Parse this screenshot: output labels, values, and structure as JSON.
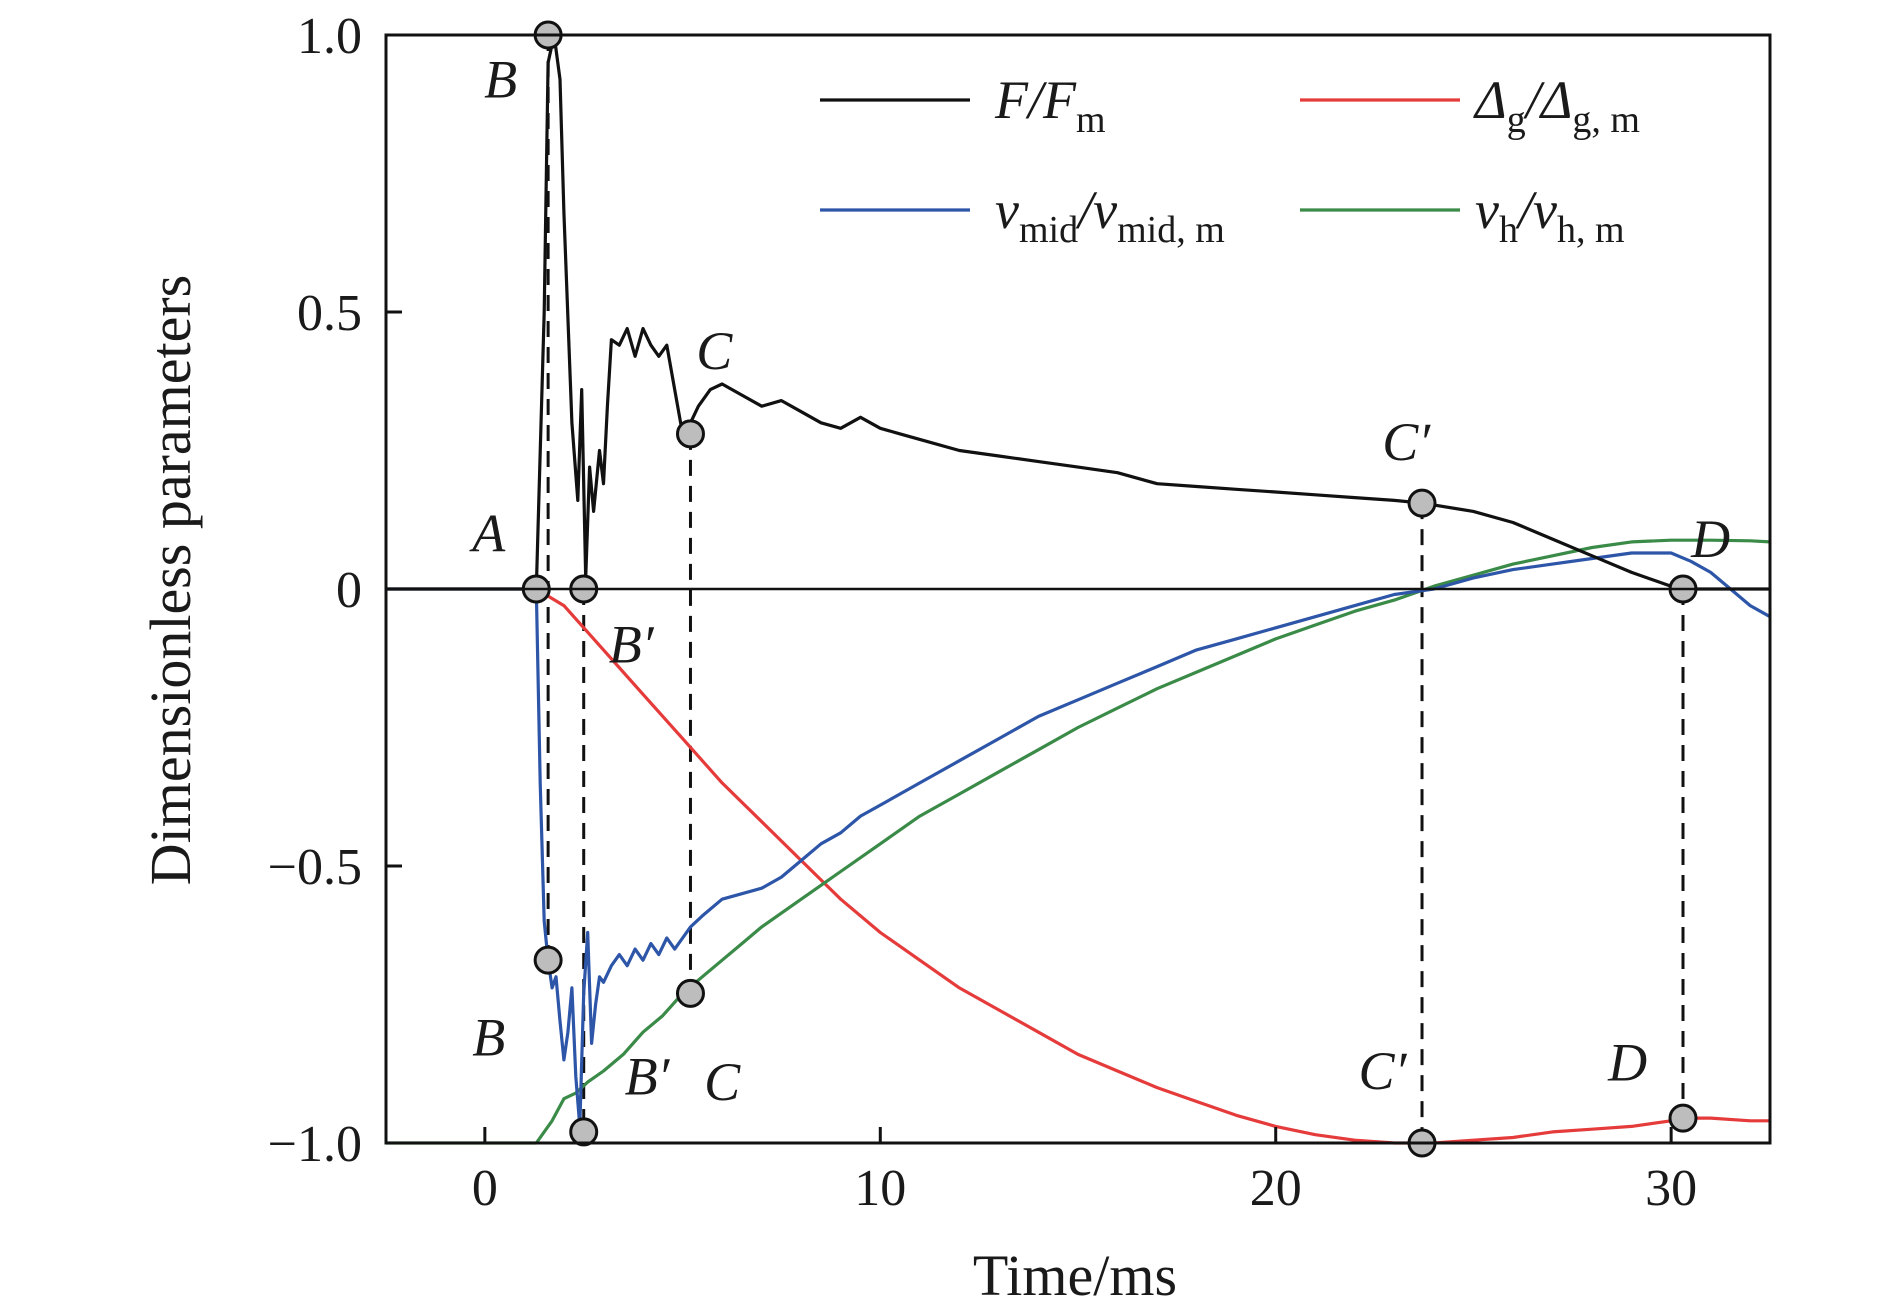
{
  "chart_data": {
    "type": "line",
    "xlabel": "Time/ms",
    "ylabel": "Dimensionless parameters",
    "xlim": [
      -2.5,
      32.5
    ],
    "ylim": [
      -1.0,
      1.0
    ],
    "xticks": [
      0,
      10,
      20,
      30
    ],
    "yticks": [
      1.0,
      0.5,
      0,
      -0.5,
      -1.0
    ],
    "xtick_labels": [
      "0",
      "10",
      "20",
      "30"
    ],
    "ytick_labels": [
      "1.0",
      "0.5",
      "0",
      "−0.5",
      "−1.0"
    ],
    "grid": false,
    "zero_line": true,
    "legend_position": "top-right",
    "series": [
      {
        "name": "F/Fm",
        "legend": {
          "base": "F/F",
          "sub": "m",
          "base2": "",
          "sub2": ""
        },
        "color": "#111111",
        "x": [
          -2.5,
          1.3,
          1.5,
          1.6,
          1.75,
          1.9,
          2.0,
          2.2,
          2.35,
          2.45,
          2.55,
          2.65,
          2.75,
          2.9,
          3.0,
          3.1,
          3.2,
          3.4,
          3.6,
          3.8,
          4.0,
          4.2,
          4.4,
          4.6,
          4.8,
          5.0,
          5.2,
          5.4,
          5.7,
          6.0,
          6.5,
          7.0,
          7.5,
          8.0,
          8.5,
          9.0,
          9.5,
          10.0,
          10.5,
          11.0,
          12.0,
          13.0,
          14.0,
          15.0,
          16.0,
          17.0,
          18.0,
          19.0,
          20.0,
          21.0,
          22.0,
          23.0,
          23.7,
          25.0,
          26.0,
          27.0,
          28.0,
          29.0,
          30.0,
          30.3,
          31.0,
          32.5
        ],
        "y": [
          0.0,
          0.0,
          0.5,
          0.95,
          1.0,
          0.92,
          0.68,
          0.3,
          0.16,
          0.36,
          0.02,
          0.22,
          0.14,
          0.25,
          0.19,
          0.33,
          0.45,
          0.44,
          0.47,
          0.42,
          0.47,
          0.44,
          0.42,
          0.44,
          0.36,
          0.28,
          0.3,
          0.33,
          0.36,
          0.37,
          0.35,
          0.33,
          0.34,
          0.32,
          0.3,
          0.29,
          0.31,
          0.29,
          0.28,
          0.27,
          0.25,
          0.24,
          0.23,
          0.22,
          0.21,
          0.19,
          0.185,
          0.18,
          0.175,
          0.17,
          0.165,
          0.16,
          0.155,
          0.14,
          0.12,
          0.09,
          0.06,
          0.03,
          0.005,
          0.0,
          0.0,
          0.0
        ]
      },
      {
        "name": "Δg/Δg, m",
        "legend": {
          "base": "Δ",
          "sub": "g",
          "base2": "/Δ",
          "sub2": "g, m"
        },
        "color": "#e53b3b",
        "x": [
          1.3,
          2.0,
          3.0,
          4.0,
          5.0,
          6.0,
          7.0,
          8.0,
          9.0,
          10.0,
          11.0,
          12.0,
          13.0,
          14.0,
          15.0,
          16.0,
          17.0,
          18.0,
          19.0,
          20.0,
          21.0,
          22.0,
          23.0,
          24.0,
          25.0,
          26.0,
          27.0,
          28.0,
          29.0,
          30.0,
          30.3,
          31.0,
          32.0,
          32.5
        ],
        "y": [
          0.0,
          -0.03,
          -0.11,
          -0.19,
          -0.27,
          -0.35,
          -0.42,
          -0.49,
          -0.56,
          -0.62,
          -0.67,
          -0.72,
          -0.76,
          -0.8,
          -0.84,
          -0.87,
          -0.9,
          -0.925,
          -0.95,
          -0.97,
          -0.985,
          -0.995,
          -1.0,
          -1.0,
          -0.995,
          -0.99,
          -0.98,
          -0.975,
          -0.97,
          -0.96,
          -0.955,
          -0.955,
          -0.96,
          -0.96
        ]
      },
      {
        "name": "vmid/vmid, m",
        "legend": {
          "base": "v",
          "sub": "mid",
          "base2": "/v",
          "sub2": "mid, m"
        },
        "color": "#2d55a8",
        "x": [
          -2.5,
          1.3,
          1.4,
          1.5,
          1.6,
          1.7,
          1.8,
          1.9,
          2.0,
          2.1,
          2.2,
          2.3,
          2.4,
          2.5,
          2.6,
          2.7,
          2.8,
          2.9,
          3.0,
          3.2,
          3.4,
          3.6,
          3.8,
          4.0,
          4.2,
          4.4,
          4.6,
          4.8,
          5.0,
          5.2,
          5.5,
          6.0,
          6.5,
          7.0,
          7.5,
          8.0,
          8.5,
          9.0,
          9.5,
          10.0,
          11.0,
          12.0,
          13.0,
          14.0,
          15.0,
          16.0,
          17.0,
          18.0,
          19.0,
          20.0,
          21.0,
          22.0,
          23.0,
          24.0,
          25.0,
          26.0,
          27.0,
          28.0,
          29.0,
          30.0,
          30.5,
          31.0,
          31.5,
          32.0,
          32.5
        ],
        "y": [
          0.0,
          0.0,
          -0.35,
          -0.6,
          -0.67,
          -0.72,
          -0.7,
          -0.78,
          -0.85,
          -0.8,
          -0.72,
          -0.88,
          -0.97,
          -0.73,
          -0.62,
          -0.82,
          -0.75,
          -0.7,
          -0.71,
          -0.68,
          -0.66,
          -0.68,
          -0.65,
          -0.67,
          -0.64,
          -0.66,
          -0.63,
          -0.65,
          -0.63,
          -0.61,
          -0.59,
          -0.56,
          -0.55,
          -0.54,
          -0.52,
          -0.49,
          -0.46,
          -0.44,
          -0.41,
          -0.39,
          -0.35,
          -0.31,
          -0.27,
          -0.23,
          -0.2,
          -0.17,
          -0.14,
          -0.11,
          -0.09,
          -0.07,
          -0.05,
          -0.03,
          -0.01,
          0.0,
          0.02,
          0.035,
          0.045,
          0.055,
          0.065,
          0.065,
          0.05,
          0.03,
          0.0,
          -0.03,
          -0.05
        ]
      },
      {
        "name": "vh/vh, m",
        "legend": {
          "base": "v",
          "sub": "h",
          "base2": "/v",
          "sub2": "h, m"
        },
        "color": "#3a8a48",
        "x": [
          -2.5,
          1.3,
          1.7,
          2.0,
          2.3,
          2.6,
          3.0,
          3.5,
          4.0,
          4.5,
          5.0,
          5.5,
          6.0,
          6.5,
          7.0,
          8.0,
          9.0,
          10.0,
          11.0,
          12.0,
          13.0,
          14.0,
          15.0,
          16.0,
          17.0,
          18.0,
          19.0,
          20.0,
          21.0,
          22.0,
          23.0,
          24.0,
          25.0,
          26.0,
          27.0,
          28.0,
          29.0,
          30.0,
          31.0,
          32.0,
          32.5
        ],
        "y": [
          -1.0,
          -1.0,
          -0.96,
          -0.92,
          -0.91,
          -0.89,
          -0.87,
          -0.84,
          -0.8,
          -0.77,
          -0.73,
          -0.7,
          -0.67,
          -0.64,
          -0.61,
          -0.56,
          -0.51,
          -0.46,
          -0.41,
          -0.37,
          -0.33,
          -0.29,
          -0.25,
          -0.215,
          -0.18,
          -0.15,
          -0.12,
          -0.09,
          -0.065,
          -0.04,
          -0.02,
          0.005,
          0.025,
          0.045,
          0.06,
          0.075,
          0.085,
          0.088,
          0.088,
          0.087,
          0.085
        ]
      }
    ],
    "guide_lines": [
      {
        "x": 1.6,
        "y_from": 1.0,
        "y_to": -0.67
      },
      {
        "x": 2.5,
        "y_from": 0.0,
        "y_to": -0.98
      },
      {
        "x": 5.2,
        "y_from": 0.28,
        "y_to": -0.73
      },
      {
        "x": 23.7,
        "y_from": 0.155,
        "y_to": -1.0
      },
      {
        "x": 30.3,
        "y_from": 0.0,
        "y_to": -0.955
      }
    ],
    "markers": [
      {
        "label": "B",
        "prime": false,
        "x": 1.6,
        "y": 1.0,
        "dx": -1.2,
        "dy": -0.08
      },
      {
        "label": "A",
        "prime": false,
        "x": 1.3,
        "y": 0.0,
        "dx": -1.2,
        "dy": 0.1
      },
      {
        "label": "B",
        "prime": true,
        "x": 2.5,
        "y": 0.0,
        "dx": 1.2,
        "dy": -0.1
      },
      {
        "label": "C",
        "prime": false,
        "x": 5.2,
        "y": 0.28,
        "dx": 0.6,
        "dy": 0.15
      },
      {
        "label": "C",
        "prime": true,
        "x": 23.7,
        "y": 0.155,
        "dx": -0.4,
        "dy": 0.11
      },
      {
        "label": "D",
        "prime": false,
        "x": 30.3,
        "y": 0.0,
        "dx": 0.7,
        "dy": 0.09
      },
      {
        "label": "B",
        "prime": false,
        "x": 1.6,
        "y": -0.67,
        "dx": -1.5,
        "dy": -0.14
      },
      {
        "label": "C",
        "prime": false,
        "x": 5.2,
        "y": -0.73,
        "dx": 0.8,
        "dy": -0.16
      },
      {
        "label": "B",
        "prime": true,
        "x": 2.5,
        "y": -0.98,
        "dx": 1.6,
        "dy": 0.1
      },
      {
        "label": "C",
        "prime": true,
        "x": 23.7,
        "y": -1.0,
        "dx": -1.0,
        "dy": 0.13
      },
      {
        "label": "D",
        "prime": false,
        "x": 30.3,
        "y": -0.955,
        "dx": -1.4,
        "dy": 0.1
      }
    ]
  }
}
